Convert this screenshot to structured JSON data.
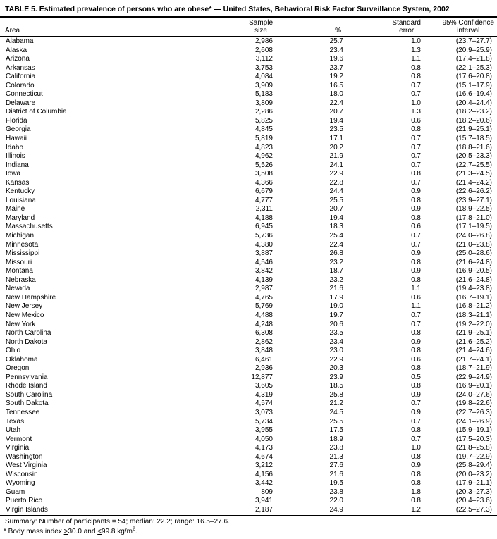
{
  "colors": {
    "text": "#000000",
    "background": "#ffffff",
    "rule": "#000000"
  },
  "title": "TABLE 5. Estimated prevalence of persons who are obese* — United States, Behavioral Risk Factor Surveillance System, 2002",
  "table": {
    "header": {
      "area": "Area",
      "sample_line1": "Sample",
      "sample_line2": "size",
      "percent": "%",
      "se_line1": "Standard",
      "se_line2": "error",
      "ci_line1": "95% Confidence",
      "ci_line2": "interval"
    },
    "rows": [
      {
        "area": "Alabama",
        "sample": "2,986",
        "pct": "25.7",
        "se": "1.0",
        "ci": "(23.7–27.7)"
      },
      {
        "area": "Alaska",
        "sample": "2,608",
        "pct": "23.4",
        "se": "1.3",
        "ci": "(20.9–25.9)"
      },
      {
        "area": "Arizona",
        "sample": "3,112",
        "pct": "19.6",
        "se": "1.1",
        "ci": "(17.4–21.8)"
      },
      {
        "area": "Arkansas",
        "sample": "3,753",
        "pct": "23.7",
        "se": "0.8",
        "ci": "(22.1–25.3)"
      },
      {
        "area": "California",
        "sample": "4,084",
        "pct": "19.2",
        "se": "0.8",
        "ci": "(17.6–20.8)"
      },
      {
        "area": "Colorado",
        "sample": "3,909",
        "pct": "16.5",
        "se": "0.7",
        "ci": "(15.1–17.9)"
      },
      {
        "area": "Connecticut",
        "sample": "5,183",
        "pct": "18.0",
        "se": "0.7",
        "ci": "(16.6–19.4)"
      },
      {
        "area": "Delaware",
        "sample": "3,809",
        "pct": "22.4",
        "se": "1.0",
        "ci": "(20.4–24.4)"
      },
      {
        "area": "District of Columbia",
        "sample": "2,286",
        "pct": "20.7",
        "se": "1.3",
        "ci": "(18.2–23.2)"
      },
      {
        "area": "Florida",
        "sample": "5,825",
        "pct": "19.4",
        "se": "0.6",
        "ci": "(18.2–20.6)"
      },
      {
        "area": "Georgia",
        "sample": "4,845",
        "pct": "23.5",
        "se": "0.8",
        "ci": "(21.9–25.1)"
      },
      {
        "area": "Hawaii",
        "sample": "5,819",
        "pct": "17.1",
        "se": "0.7",
        "ci": "(15.7–18.5)"
      },
      {
        "area": "Idaho",
        "sample": "4,823",
        "pct": "20.2",
        "se": "0.7",
        "ci": "(18.8–21.6)"
      },
      {
        "area": "Illinois",
        "sample": "4,962",
        "pct": "21.9",
        "se": "0.7",
        "ci": "(20.5–23.3)"
      },
      {
        "area": "Indiana",
        "sample": "5,526",
        "pct": "24.1",
        "se": "0.7",
        "ci": "(22.7–25.5)"
      },
      {
        "area": "Iowa",
        "sample": "3,508",
        "pct": "22.9",
        "se": "0.8",
        "ci": "(21.3–24.5)"
      },
      {
        "area": "Kansas",
        "sample": "4,366",
        "pct": "22.8",
        "se": "0.7",
        "ci": "(21.4–24.2)"
      },
      {
        "area": "Kentucky",
        "sample": "6,679",
        "pct": "24.4",
        "se": "0.9",
        "ci": "(22.6–26.2)"
      },
      {
        "area": "Louisiana",
        "sample": "4,777",
        "pct": "25.5",
        "se": "0.8",
        "ci": "(23.9–27.1)"
      },
      {
        "area": "Maine",
        "sample": "2,311",
        "pct": "20.7",
        "se": "0.9",
        "ci": "(18.9–22.5)"
      },
      {
        "area": "Maryland",
        "sample": "4,188",
        "pct": "19.4",
        "se": "0.8",
        "ci": "(17.8–21.0)"
      },
      {
        "area": "Massachusetts",
        "sample": "6,945",
        "pct": "18.3",
        "se": "0.6",
        "ci": "(17.1–19.5)"
      },
      {
        "area": "Michigan",
        "sample": "5,736",
        "pct": "25.4",
        "se": "0.7",
        "ci": "(24.0–26.8)"
      },
      {
        "area": "Minnesota",
        "sample": "4,380",
        "pct": "22.4",
        "se": "0.7",
        "ci": "(21.0–23.8)"
      },
      {
        "area": "Mississippi",
        "sample": "3,887",
        "pct": "26.8",
        "se": "0.9",
        "ci": "(25.0–28.6)"
      },
      {
        "area": "Missouri",
        "sample": "4,546",
        "pct": "23.2",
        "se": "0.8",
        "ci": "(21.6–24.8)"
      },
      {
        "area": "Montana",
        "sample": "3,842",
        "pct": "18.7",
        "se": "0.9",
        "ci": "(16.9–20.5)"
      },
      {
        "area": "Nebraska",
        "sample": "4,139",
        "pct": "23.2",
        "se": "0.8",
        "ci": "(21.6–24.8)"
      },
      {
        "area": "Nevada",
        "sample": "2,987",
        "pct": "21.6",
        "se": "1.1",
        "ci": "(19.4–23.8)"
      },
      {
        "area": "New Hampshire",
        "sample": "4,765",
        "pct": "17.9",
        "se": "0.6",
        "ci": "(16.7–19.1)"
      },
      {
        "area": "New Jersey",
        "sample": "5,769",
        "pct": "19.0",
        "se": "1.1",
        "ci": "(16.8–21.2)"
      },
      {
        "area": "New Mexico",
        "sample": "4,488",
        "pct": "19.7",
        "se": "0.7",
        "ci": "(18.3–21.1)"
      },
      {
        "area": "New York",
        "sample": "4,248",
        "pct": "20.6",
        "se": "0.7",
        "ci": "(19.2–22.0)"
      },
      {
        "area": "North Carolina",
        "sample": "6,308",
        "pct": "23.5",
        "se": "0.8",
        "ci": "(21.9–25.1)"
      },
      {
        "area": "North Dakota",
        "sample": "2,862",
        "pct": "23.4",
        "se": "0.9",
        "ci": "(21.6–25.2)"
      },
      {
        "area": "Ohio",
        "sample": "3,848",
        "pct": "23.0",
        "se": "0.8",
        "ci": "(21.4–24.6)"
      },
      {
        "area": "Oklahoma",
        "sample": "6,461",
        "pct": "22.9",
        "se": "0.6",
        "ci": "(21.7–24.1)"
      },
      {
        "area": "Oregon",
        "sample": "2,936",
        "pct": "20.3",
        "se": "0.8",
        "ci": "(18.7–21.9)"
      },
      {
        "area": "Pennsylvania",
        "sample": "12,877",
        "pct": "23.9",
        "se": "0.5",
        "ci": "(22.9–24.9)"
      },
      {
        "area": "Rhode Island",
        "sample": "3,605",
        "pct": "18.5",
        "se": "0.8",
        "ci": "(16.9–20.1)"
      },
      {
        "area": "South Carolina",
        "sample": "4,319",
        "pct": "25.8",
        "se": "0.9",
        "ci": "(24.0–27.6)"
      },
      {
        "area": "South Dakota",
        "sample": "4,574",
        "pct": "21.2",
        "se": "0.7",
        "ci": "(19.8–22.6)"
      },
      {
        "area": "Tennessee",
        "sample": "3,073",
        "pct": "24.5",
        "se": "0.9",
        "ci": "(22.7–26.3)"
      },
      {
        "area": "Texas",
        "sample": "5,734",
        "pct": "25.5",
        "se": "0.7",
        "ci": "(24.1–26.9)"
      },
      {
        "area": "Utah",
        "sample": "3,955",
        "pct": "17.5",
        "se": "0.8",
        "ci": "(15.9–19.1)"
      },
      {
        "area": "Vermont",
        "sample": "4,050",
        "pct": "18.9",
        "se": "0.7",
        "ci": "(17.5–20.3)"
      },
      {
        "area": "Virginia",
        "sample": "4,173",
        "pct": "23.8",
        "se": "1.0",
        "ci": "(21.8–25.8)"
      },
      {
        "area": "Washington",
        "sample": "4,674",
        "pct": "21.3",
        "se": "0.8",
        "ci": "(19.7–22.9)"
      },
      {
        "area": "West Virginia",
        "sample": "3,212",
        "pct": "27.6",
        "se": "0.9",
        "ci": "(25.8–29.4)"
      },
      {
        "area": "Wisconsin",
        "sample": "4,156",
        "pct": "21.6",
        "se": "0.8",
        "ci": "(20.0–23.2)"
      },
      {
        "area": "Wyoming",
        "sample": "3,442",
        "pct": "19.5",
        "se": "0.8",
        "ci": "(17.9–21.1)"
      },
      {
        "area": "Guam",
        "sample": "809",
        "pct": "23.8",
        "se": "1.8",
        "ci": "(20.3–27.3)"
      },
      {
        "area": "Puerto Rico",
        "sample": "3,941",
        "pct": "22.0",
        "se": "0.8",
        "ci": "(20.4–23.6)"
      },
      {
        "area": "Virgin Islands",
        "sample": "2,187",
        "pct": "24.9",
        "se": "1.2",
        "ci": "(22.5–27.3)"
      }
    ]
  },
  "summary": "Summary: Number of participants = 54; median: 22.2; range: 16.5–27.6.",
  "footnotes": {
    "bmi": {
      "pre": "* Body mass index ",
      "gte": ">",
      "mid": "30.0 and ",
      "lte": "<",
      "post": "99.8 kg/m",
      "sup": "2",
      "end": "."
    }
  }
}
